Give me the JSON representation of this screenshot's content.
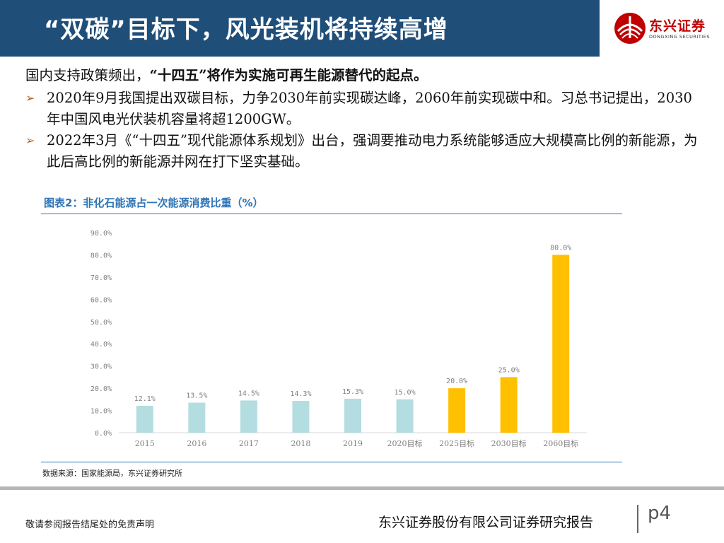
{
  "header": {
    "title": "“双碳”目标下，风光装机将持续高增",
    "logo_cn": "东兴证券",
    "logo_en": "DONGXING SECURITIES"
  },
  "content": {
    "intro_prefix": "国内支持政策频出，",
    "intro_bold": "“十四五”将作为实施可再生能源替代的起点。",
    "bullets": [
      "2020年9月我国提出双碳目标，力争2030年前实现碳达峰，2060年前实现碳中和。习总书记提出，2030年中国风电光伏装机容量将超1200GW。",
      "2022年3月《“十四五”现代能源体系规划》出台，强调要推动电力系统能够适应大规模高比例的新能源，为此后高比例的新能源并网在打下坚实基础。"
    ]
  },
  "chart_title": "图表2：非化石能源占一次能源消费比重（%）",
  "chart_data": {
    "type": "bar",
    "title": "图表2：非化石能源占一次能源消费比重（%）",
    "categories": [
      "2015",
      "2016",
      "2017",
      "2018",
      "2019",
      "2020目标",
      "2025目标",
      "2030目标",
      "2060目标"
    ],
    "values": [
      12.1,
      13.5,
      14.5,
      14.3,
      15.3,
      15.0,
      20.0,
      25.0,
      80.0
    ],
    "value_labels": [
      "12.1%",
      "13.5%",
      "14.5%",
      "14.3%",
      "15.3%",
      "15.0%",
      "20.0%",
      "25.0%",
      "80.0%"
    ],
    "bar_colors": [
      "#b4dde1",
      "#b4dde1",
      "#b4dde1",
      "#b4dde1",
      "#b4dde1",
      "#b4dde1",
      "#ffc000",
      "#ffc000",
      "#ffc000"
    ],
    "yticks": [
      "0.0%",
      "10.0%",
      "20.0%",
      "30.0%",
      "40.0%",
      "50.0%",
      "60.0%",
      "70.0%",
      "80.0%",
      "90.0%"
    ],
    "ylim": [
      0,
      90
    ],
    "xlabel": "",
    "ylabel": "",
    "grid": false,
    "legend": "none"
  },
  "source": "数据来源：国家能源局，东兴证券研究所",
  "footer": {
    "disclaimer": "敬请参阅报告结尾处的免责声明",
    "company": "东兴证券股份有限公司证券研究报告",
    "page": "p4"
  },
  "colors": {
    "header_bg": "#1f4e79",
    "accent_blue": "#2e75b6",
    "bar_actual": "#b4dde1",
    "bar_target": "#ffc000",
    "brand_red": "#c00000"
  }
}
